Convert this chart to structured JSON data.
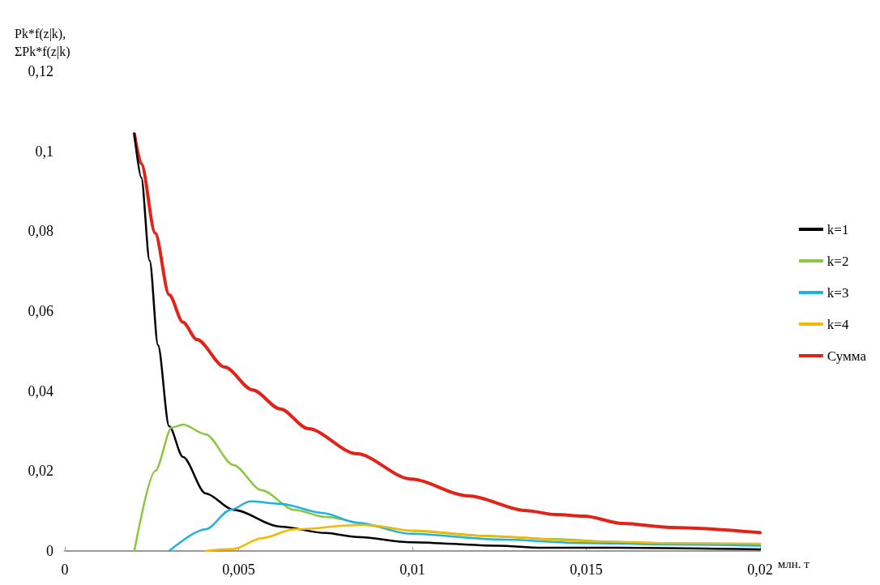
{
  "chart_data": {
    "type": "line",
    "xlabel": "млн. т",
    "ylabel": "Pk*f(z|k),\nΣPk*f(z|k)",
    "xlim": [
      0,
      0.02
    ],
    "xticks": [
      0,
      {
        "value": 0.005,
        "label": "0,005"
      },
      {
        "value": 0.01,
        "label": "0,01"
      },
      {
        "value": 0.015,
        "label": "0,015"
      },
      {
        "value": 0.02,
        "label": "0,02"
      }
    ],
    "ylim": [
      0,
      0.12
    ],
    "yticks": [
      0,
      {
        "value": 0.02,
        "label": "0,02"
      },
      {
        "value": 0.04,
        "label": "0,04"
      },
      {
        "value": 0.06,
        "label": "0,06"
      },
      {
        "value": 0.08,
        "label": "0,08"
      },
      {
        "value": 0.1,
        "label": "0,1"
      },
      {
        "value": 0.12,
        "label": "0,12"
      }
    ],
    "grid": false,
    "legend": "right",
    "marker": "none",
    "line_style": "solid",
    "series": [
      {
        "name": "k=1",
        "color": "#000000",
        "x": [
          0.002,
          0.0022,
          0.00244,
          0.00268,
          0.003,
          0.0034,
          0.00405,
          0.00485,
          0.0062,
          0.0075,
          0.0084,
          0.00995,
          0.01245,
          0.0137,
          0.0158,
          0.02
        ],
        "values": [
          0.1044,
          0.0934,
          0.0726,
          0.0515,
          0.0312,
          0.0235,
          0.0144,
          0.0103,
          0.0061,
          0.0045,
          0.0035,
          0.0022,
          0.0013,
          0.0008,
          0.0008,
          0.0004
        ]
      },
      {
        "name": "k=2",
        "color": "#8cc63f",
        "x": [
          0.002,
          0.0026,
          0.00308,
          0.0034,
          0.00405,
          0.00485,
          0.00566,
          0.0066,
          0.0075,
          0.009,
          0.01,
          0.012,
          0.014,
          0.016,
          0.018,
          0.02
        ],
        "values": [
          0,
          0.02,
          0.0309,
          0.0316,
          0.0292,
          0.0215,
          0.0152,
          0.0103,
          0.0085,
          0.0062,
          0.005,
          0.0038,
          0.003,
          0.0022,
          0.0018,
          0.0015
        ]
      },
      {
        "name": "k=3",
        "color": "#1fb2e0",
        "x": [
          0.003,
          0.00405,
          0.00477,
          0.00534,
          0.0062,
          0.00743,
          0.0084,
          0.00995,
          0.01245,
          0.01494,
          0.01745,
          0.02
        ],
        "values": [
          0,
          0.0054,
          0.0103,
          0.0124,
          0.0118,
          0.0095,
          0.0071,
          0.0043,
          0.0029,
          0.002,
          0.0016,
          0.0013
        ]
      },
      {
        "name": "k=4",
        "color": "#f5b800",
        "x": [
          0.00405,
          0.00485,
          0.00566,
          0.0066,
          0.0084,
          0.0087,
          0.00995,
          0.01245,
          0.01494,
          0.01745,
          0.02
        ],
        "values": [
          0,
          0.0005,
          0.0032,
          0.0054,
          0.0065,
          0.0065,
          0.0051,
          0.0036,
          0.0025,
          0.002,
          0.0018
        ]
      },
      {
        "name": "Сумма",
        "color": "#e2231a",
        "x": [
          0.002,
          0.0022,
          0.0026,
          0.003,
          0.0034,
          0.0038,
          0.0046,
          0.0054,
          0.0062,
          0.007,
          0.0084,
          0.00995,
          0.0116,
          0.01329,
          0.0141,
          0.01494,
          0.01604,
          0.01745,
          0.02
        ],
        "values": [
          0.1044,
          0.0969,
          0.0795,
          0.0641,
          0.0572,
          0.0529,
          0.046,
          0.0403,
          0.0355,
          0.0306,
          0.0243,
          0.018,
          0.0138,
          0.0101,
          0.0091,
          0.0087,
          0.0069,
          0.0059,
          0.0046
        ]
      }
    ]
  }
}
